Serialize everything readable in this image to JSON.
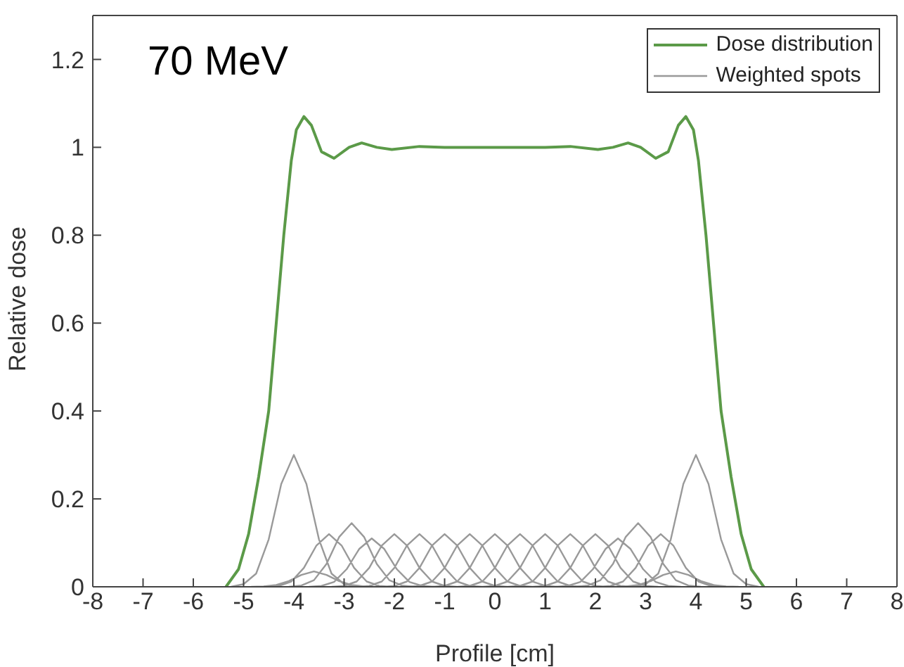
{
  "chart_data": {
    "type": "line",
    "xlabel": "Profile [cm]",
    "ylabel": "Relative dose",
    "annotations": [
      "70 MeV"
    ],
    "xlim": [
      -8,
      8
    ],
    "xticks": [
      -8,
      -7,
      -6,
      -5,
      -4,
      -3,
      -2,
      -1,
      0,
      1,
      2,
      3,
      4,
      5,
      6,
      7,
      8
    ],
    "ylim": [
      0,
      1.3
    ],
    "yticks": [
      0,
      0.2,
      0.4,
      0.6,
      0.8,
      1,
      1.2
    ],
    "grid": false,
    "legend": "top right",
    "series": [
      {
        "name": "Dose distribution",
        "color": "#5b9a48",
        "x": [
          -5.35,
          -5.1,
          -4.9,
          -4.7,
          -4.5,
          -4.35,
          -4.2,
          -4.05,
          -3.95,
          -3.8,
          -3.65,
          -3.45,
          -3.2,
          -2.9,
          -2.65,
          -2.35,
          -2.05,
          -1.5,
          -1,
          0,
          1,
          1.5,
          2.05,
          2.35,
          2.65,
          2.9,
          3.2,
          3.45,
          3.65,
          3.8,
          3.95,
          4.05,
          4.2,
          4.35,
          4.5,
          4.7,
          4.9,
          5.1,
          5.35
        ],
        "values": [
          0,
          0.04,
          0.12,
          0.25,
          0.4,
          0.6,
          0.8,
          0.97,
          1.04,
          1.07,
          1.05,
          0.99,
          0.975,
          1.0,
          1.01,
          1.0,
          0.995,
          1.002,
          1.0,
          1.0,
          1.0,
          1.002,
          0.995,
          1.0,
          1.01,
          1.0,
          0.975,
          0.99,
          1.05,
          1.07,
          1.04,
          0.97,
          0.8,
          0.6,
          0.4,
          0.25,
          0.12,
          0.04,
          0
        ]
      },
      {
        "name": "Weighted spots",
        "color": "#999999",
        "x": [
          -5.25,
          -5,
          -4.75,
          -4.5,
          -4.25,
          -4,
          -3.75,
          -3.5,
          -3.25,
          -3,
          -2.75,
          null,
          -4.85,
          -4.6,
          -4.35,
          -4.1,
          -3.85,
          -3.6,
          -3.35,
          -3.1,
          -2.85,
          -2.6,
          -2.35,
          null,
          -4.55,
          -4.3,
          -4.05,
          -3.8,
          -3.55,
          -3.3,
          -3.05,
          -2.8,
          -2.55,
          -2.3,
          -2.05,
          null,
          -4.1,
          -3.85,
          -3.6,
          -3.35,
          -3.1,
          -2.85,
          -2.6,
          -2.35,
          -2.1,
          -1.85,
          -1.6,
          null,
          -3.7,
          -3.45,
          -3.2,
          -2.95,
          -2.7,
          -2.45,
          -2.2,
          -1.95,
          -1.7,
          -1.45,
          -1.2,
          null,
          -3.25,
          -3,
          -2.75,
          -2.5,
          -2.25,
          -2,
          -1.75,
          -1.5,
          -1.25,
          -1,
          -0.75,
          null,
          -2.75,
          -2.5,
          -2.25,
          -2,
          -1.75,
          -1.5,
          -1.25,
          -1,
          -0.75,
          -0.5,
          -0.25,
          null,
          -2.25,
          -2,
          -1.75,
          -1.5,
          -1.25,
          -1,
          -0.75,
          -0.5,
          -0.25,
          0,
          0.25,
          null,
          -1.75,
          -1.5,
          -1.25,
          -1,
          -0.75,
          -0.5,
          -0.25,
          0,
          0.25,
          0.5,
          0.75,
          null,
          -1.25,
          -1,
          -0.75,
          -0.5,
          -0.25,
          0,
          0.25,
          0.5,
          0.75,
          1,
          1.25,
          null,
          -0.75,
          -0.5,
          -0.25,
          0,
          0.25,
          0.5,
          0.75,
          1,
          1.25,
          1.5,
          1.75,
          null,
          -0.25,
          0,
          0.25,
          0.5,
          0.75,
          1,
          1.25,
          1.5,
          1.75,
          2,
          2.25,
          null,
          0.25,
          0.5,
          0.75,
          1,
          1.25,
          1.5,
          1.75,
          2,
          2.25,
          2.5,
          2.75,
          null,
          0.75,
          1,
          1.25,
          1.5,
          1.75,
          2,
          2.25,
          2.5,
          2.75,
          3,
          3.25,
          null,
          1.2,
          1.45,
          1.7,
          1.95,
          2.2,
          2.45,
          2.7,
          2.95,
          3.2,
          3.45,
          3.7,
          null,
          1.6,
          1.85,
          2.1,
          2.35,
          2.6,
          2.85,
          3.1,
          3.35,
          3.6,
          3.85,
          4.1,
          null,
          2.05,
          2.3,
          2.55,
          2.8,
          3.05,
          3.3,
          3.55,
          3.8,
          4.05,
          4.3,
          4.55,
          null,
          2.35,
          2.6,
          2.85,
          3.1,
          3.35,
          3.6,
          3.85,
          4.1,
          4.35,
          4.6,
          4.85,
          null,
          2.75,
          3,
          3.25,
          3.5,
          3.75,
          4,
          4.25,
          4.5,
          4.75,
          5,
          5.25
        ],
        "values": [
          0,
          0.006,
          0.03,
          0.108,
          0.234,
          0.3,
          0.234,
          0.108,
          0.03,
          0.006,
          0,
          null,
          0,
          0.001,
          0.004,
          0.013,
          0.027,
          0.035,
          0.027,
          0.013,
          0.004,
          0.001,
          0,
          null,
          0,
          0.002,
          0.012,
          0.043,
          0.094,
          0.12,
          0.094,
          0.043,
          0.012,
          0.002,
          0,
          null,
          0,
          0.003,
          0.015,
          0.052,
          0.113,
          0.145,
          0.113,
          0.052,
          0.015,
          0.003,
          0,
          null,
          0,
          0.002,
          0.011,
          0.04,
          0.086,
          0.11,
          0.086,
          0.04,
          0.011,
          0.002,
          0,
          null,
          0,
          0.002,
          0.012,
          0.043,
          0.094,
          0.12,
          0.094,
          0.043,
          0.012,
          0.002,
          0,
          null,
          0,
          0.002,
          0.012,
          0.043,
          0.094,
          0.12,
          0.094,
          0.043,
          0.012,
          0.002,
          0,
          null,
          0,
          0.002,
          0.012,
          0.043,
          0.094,
          0.12,
          0.094,
          0.043,
          0.012,
          0.002,
          0,
          null,
          0,
          0.002,
          0.012,
          0.043,
          0.094,
          0.12,
          0.094,
          0.043,
          0.012,
          0.002,
          0,
          null,
          0,
          0.002,
          0.012,
          0.043,
          0.094,
          0.12,
          0.094,
          0.043,
          0.012,
          0.002,
          0,
          null,
          0,
          0.002,
          0.012,
          0.043,
          0.094,
          0.12,
          0.094,
          0.043,
          0.012,
          0.002,
          0,
          null,
          0,
          0.002,
          0.012,
          0.043,
          0.094,
          0.12,
          0.094,
          0.043,
          0.012,
          0.002,
          0,
          null,
          0,
          0.002,
          0.012,
          0.043,
          0.094,
          0.12,
          0.094,
          0.043,
          0.012,
          0.002,
          0,
          null,
          0,
          0.002,
          0.012,
          0.043,
          0.094,
          0.12,
          0.094,
          0.043,
          0.012,
          0.002,
          0,
          null,
          0,
          0.002,
          0.011,
          0.04,
          0.086,
          0.11,
          0.086,
          0.04,
          0.011,
          0.002,
          0,
          null,
          0,
          0.003,
          0.015,
          0.052,
          0.113,
          0.145,
          0.113,
          0.052,
          0.015,
          0.003,
          0,
          null,
          0,
          0.002,
          0.012,
          0.043,
          0.094,
          0.12,
          0.094,
          0.043,
          0.012,
          0.002,
          0,
          null,
          0,
          0.001,
          0.004,
          0.013,
          0.027,
          0.035,
          0.027,
          0.013,
          0.004,
          0.001,
          0,
          null,
          0,
          0.006,
          0.03,
          0.108,
          0.234,
          0.3,
          0.234,
          0.108,
          0.03,
          0.006,
          0
        ]
      }
    ]
  }
}
